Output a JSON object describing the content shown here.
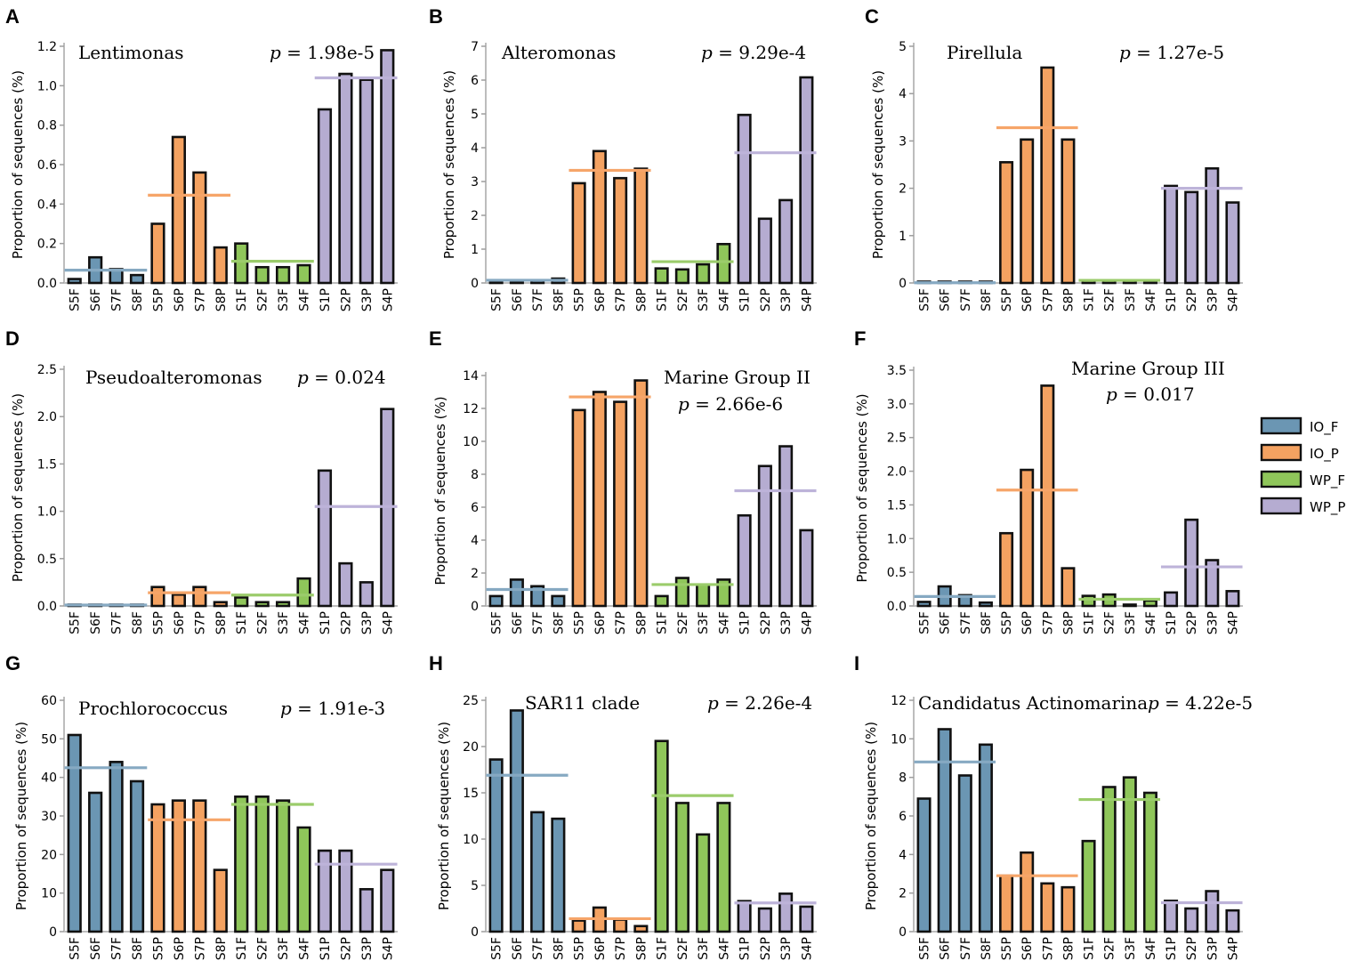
{
  "figure": {
    "colors": {
      "IO_F": "#6b96b3",
      "IO_P": "#f4a261",
      "WP_F": "#8fc65a",
      "WP_P": "#b5acd1"
    },
    "mean_line_colors": {
      "IO_F": "#86a9c2",
      "IO_P": "#f6a569",
      "WP_F": "#9bcc6b",
      "WP_P": "#bdb3d9"
    },
    "legend": [
      {
        "key": "IO_F",
        "label": "IO_F"
      },
      {
        "key": "IO_P",
        "label": "IO_P"
      },
      {
        "key": "WP_F",
        "label": "WP_F"
      },
      {
        "key": "WP_P",
        "label": "WP_P"
      }
    ],
    "ylabel": "Proportion of sequences (%)"
  },
  "chart_data": [
    {
      "panel": "A",
      "type": "bar",
      "title": "Lentimonas",
      "p_label": "p",
      "p_value": " = 1.98e-5",
      "ylabel": "Proportion of sequences (%)",
      "categories": [
        "S5F",
        "S6F",
        "S7F",
        "S8F",
        "S5P",
        "S6P",
        "S7P",
        "S8P",
        "S1F",
        "S2F",
        "S3F",
        "S4F",
        "S1P",
        "S2P",
        "S3P",
        "S4P"
      ],
      "groups": [
        "IO_F",
        "IO_F",
        "IO_F",
        "IO_F",
        "IO_P",
        "IO_P",
        "IO_P",
        "IO_P",
        "WP_F",
        "WP_F",
        "WP_F",
        "WP_F",
        "WP_P",
        "WP_P",
        "WP_P",
        "WP_P"
      ],
      "values": [
        0.02,
        0.13,
        0.07,
        0.04,
        0.3,
        0.74,
        0.56,
        0.18,
        0.2,
        0.08,
        0.08,
        0.09,
        0.88,
        1.06,
        1.03,
        1.18
      ],
      "means": {
        "IO_F": 0.065,
        "IO_P": 0.445,
        "WP_F": 0.11,
        "WP_P": 1.04
      },
      "ylim": [
        0,
        1.2
      ],
      "yticks": [
        "0.0",
        "0.2",
        "0.4",
        "0.6",
        "0.8",
        "1.0",
        "1.2"
      ],
      "ytick_values": [
        0,
        0.2,
        0.4,
        0.6,
        0.8,
        1.0,
        1.2
      ]
    },
    {
      "panel": "B",
      "type": "bar",
      "title": "Alteromonas",
      "p_label": "p",
      "p_value": " = 9.29e-4",
      "ylabel": "Proportion of sequences (%)",
      "categories": [
        "S5F",
        "S6F",
        "S7F",
        "S8F",
        "S5P",
        "S6P",
        "S7P",
        "S8P",
        "S1F",
        "S2F",
        "S3F",
        "S4F",
        "S1P",
        "S2P",
        "S3P",
        "S4P"
      ],
      "groups": [
        "IO_F",
        "IO_F",
        "IO_F",
        "IO_F",
        "IO_P",
        "IO_P",
        "IO_P",
        "IO_P",
        "WP_F",
        "WP_F",
        "WP_F",
        "WP_F",
        "WP_P",
        "WP_P",
        "WP_P",
        "WP_P"
      ],
      "values": [
        0.05,
        0.05,
        0.08,
        0.13,
        2.95,
        3.9,
        3.1,
        3.38,
        0.43,
        0.4,
        0.55,
        1.15,
        4.97,
        1.9,
        2.45,
        6.08
      ],
      "means": {
        "IO_F": 0.08,
        "IO_P": 3.33,
        "WP_F": 0.63,
        "WP_P": 3.85
      },
      "ylim": [
        0,
        7
      ],
      "yticks": [
        "0",
        "1",
        "2",
        "3",
        "4",
        "5",
        "6",
        "7"
      ],
      "ytick_values": [
        0,
        1,
        2,
        3,
        4,
        5,
        6,
        7
      ]
    },
    {
      "panel": "C",
      "type": "bar",
      "title": "Pirellula",
      "p_label": "p",
      "p_value": " = 1.27e-5",
      "ylabel": "Proportion of sequences (%)",
      "categories": [
        "S5F",
        "S6F",
        "S7F",
        "S8F",
        "S5P",
        "S6P",
        "S7P",
        "S8P",
        "S1F",
        "S2F",
        "S3F",
        "S4F",
        "S1P",
        "S2P",
        "S3P",
        "S4P"
      ],
      "groups": [
        "IO_F",
        "IO_F",
        "IO_F",
        "IO_F",
        "IO_P",
        "IO_P",
        "IO_P",
        "IO_P",
        "WP_F",
        "WP_F",
        "WP_F",
        "WP_F",
        "WP_P",
        "WP_P",
        "WP_P",
        "WP_P"
      ],
      "values": [
        0.005,
        0.005,
        0.005,
        0.005,
        2.55,
        3.03,
        4.55,
        3.03,
        0.06,
        0.06,
        0.06,
        0.04,
        2.05,
        1.92,
        2.42,
        1.7
      ],
      "means": {
        "IO_F": 0.005,
        "IO_P": 3.28,
        "WP_F": 0.055,
        "WP_P": 2.0
      },
      "ylim": [
        0,
        5
      ],
      "yticks": [
        "0",
        "1",
        "2",
        "3",
        "4",
        "5"
      ],
      "ytick_values": [
        0,
        1,
        2,
        3,
        4,
        5
      ]
    },
    {
      "panel": "D",
      "type": "bar",
      "title": "Pseudoalteromonas",
      "p_label": "p",
      "p_value": " = 0.024",
      "ylabel": "Proportion of sequences (%)",
      "categories": [
        "S5F",
        "S6F",
        "S7F",
        "S8F",
        "S5P",
        "S6P",
        "S7P",
        "S8P",
        "S1F",
        "S2F",
        "S3F",
        "S4F",
        "S1P",
        "S2P",
        "S3P",
        "S4P"
      ],
      "groups": [
        "IO_F",
        "IO_F",
        "IO_F",
        "IO_F",
        "IO_P",
        "IO_P",
        "IO_P",
        "IO_P",
        "WP_F",
        "WP_F",
        "WP_F",
        "WP_F",
        "WP_P",
        "WP_P",
        "WP_P",
        "WP_P"
      ],
      "values": [
        0.01,
        0.01,
        0.01,
        0.005,
        0.2,
        0.12,
        0.2,
        0.04,
        0.09,
        0.04,
        0.04,
        0.29,
        1.43,
        0.45,
        0.25,
        2.08
      ],
      "means": {
        "IO_F": 0.01,
        "IO_P": 0.14,
        "WP_F": 0.115,
        "WP_P": 1.05
      },
      "ylim": [
        0,
        2.5
      ],
      "yticks": [
        "0.0",
        "0.5",
        "1.0",
        "1.5",
        "2.0",
        "2.5"
      ],
      "ytick_values": [
        0,
        0.5,
        1.0,
        1.5,
        2.0,
        2.5
      ]
    },
    {
      "panel": "E",
      "type": "bar",
      "title": "Marine Group II",
      "p_label": "p",
      "p_value": " = 2.66e-6",
      "ylabel": "Proportion of sequences (%)",
      "categories": [
        "S5F",
        "S6F",
        "S7F",
        "S8F",
        "S5P",
        "S6P",
        "S7P",
        "S8P",
        "S1F",
        "S2F",
        "S3F",
        "S4F",
        "S1P",
        "S2P",
        "S3P",
        "S4P"
      ],
      "groups": [
        "IO_F",
        "IO_F",
        "IO_F",
        "IO_F",
        "IO_P",
        "IO_P",
        "IO_P",
        "IO_P",
        "WP_F",
        "WP_F",
        "WP_F",
        "WP_F",
        "WP_P",
        "WP_P",
        "WP_P",
        "WP_P"
      ],
      "values": [
        0.6,
        1.6,
        1.2,
        0.6,
        11.9,
        13.0,
        12.4,
        13.7,
        0.6,
        1.7,
        1.3,
        1.6,
        5.5,
        8.5,
        9.7,
        4.6
      ],
      "means": {
        "IO_F": 1.0,
        "IO_P": 12.7,
        "WP_F": 1.3,
        "WP_P": 7.0
      },
      "ylim": [
        0,
        14
      ],
      "yticks": [
        "0",
        "2",
        "4",
        "6",
        "8",
        "10",
        "12",
        "14"
      ],
      "ytick_values": [
        0,
        2,
        4,
        6,
        8,
        10,
        12,
        14
      ]
    },
    {
      "panel": "F",
      "type": "bar",
      "title": "Marine Group III",
      "p_label": "p",
      "p_value": " = 0.017",
      "ylabel": "Proportion of sequences (%)",
      "categories": [
        "S5F",
        "S6F",
        "S7F",
        "S8F",
        "S5P",
        "S6P",
        "S7P",
        "S8P",
        "S1F",
        "S2F",
        "S3F",
        "S4F",
        "S1P",
        "S2P",
        "S3P",
        "S4P"
      ],
      "groups": [
        "IO_F",
        "IO_F",
        "IO_F",
        "IO_F",
        "IO_P",
        "IO_P",
        "IO_P",
        "IO_P",
        "WP_F",
        "WP_F",
        "WP_F",
        "WP_F",
        "WP_P",
        "WP_P",
        "WP_P",
        "WP_P"
      ],
      "values": [
        0.06,
        0.29,
        0.16,
        0.05,
        1.08,
        2.02,
        3.27,
        0.56,
        0.15,
        0.17,
        0.02,
        0.08,
        0.2,
        1.28,
        0.68,
        0.22
      ],
      "means": {
        "IO_F": 0.14,
        "IO_P": 1.72,
        "WP_F": 0.1,
        "WP_P": 0.58
      },
      "ylim": [
        0,
        3.5
      ],
      "yticks": [
        "0.0",
        "0.5",
        "1.0",
        "1.5",
        "2.0",
        "2.5",
        "3.0",
        "3.5"
      ],
      "ytick_values": [
        0,
        0.5,
        1.0,
        1.5,
        2.0,
        2.5,
        3.0,
        3.5
      ]
    },
    {
      "panel": "G",
      "type": "bar",
      "title": "Prochlorococcus",
      "p_label": "p",
      "p_value": " = 1.91e-3",
      "ylabel": "Proportion of sequences (%)",
      "categories": [
        "S5F",
        "S6F",
        "S7F",
        "S8F",
        "S5P",
        "S6P",
        "S7P",
        "S8P",
        "S1F",
        "S2F",
        "S3F",
        "S4F",
        "S1P",
        "S2P",
        "S3P",
        "S4P"
      ],
      "groups": [
        "IO_F",
        "IO_F",
        "IO_F",
        "IO_F",
        "IO_P",
        "IO_P",
        "IO_P",
        "IO_P",
        "WP_F",
        "WP_F",
        "WP_F",
        "WP_F",
        "WP_P",
        "WP_P",
        "WP_P",
        "WP_P"
      ],
      "values": [
        51,
        36,
        44,
        39,
        33,
        34,
        34,
        16,
        35,
        35,
        34,
        27,
        21,
        21,
        11,
        16
      ],
      "means": {
        "IO_F": 42.5,
        "IO_P": 29,
        "WP_F": 33,
        "WP_P": 17.5
      },
      "ylim": [
        0,
        60
      ],
      "yticks": [
        "0",
        "10",
        "20",
        "30",
        "40",
        "50",
        "60"
      ],
      "ytick_values": [
        0,
        10,
        20,
        30,
        40,
        50,
        60
      ]
    },
    {
      "panel": "H",
      "type": "bar",
      "title": "SAR11 clade",
      "p_label": "p",
      "p_value": " = 2.26e-4",
      "ylabel": "Proportion of sequences (%)",
      "categories": [
        "S5F",
        "S6F",
        "S7F",
        "S8F",
        "S5P",
        "S6P",
        "S7P",
        "S8P",
        "S1F",
        "S2F",
        "S3F",
        "S4F",
        "S1P",
        "S2P",
        "S3P",
        "S4P"
      ],
      "groups": [
        "IO_F",
        "IO_F",
        "IO_F",
        "IO_F",
        "IO_P",
        "IO_P",
        "IO_P",
        "IO_P",
        "WP_F",
        "WP_F",
        "WP_F",
        "WP_F",
        "WP_P",
        "WP_P",
        "WP_P",
        "WP_P"
      ],
      "values": [
        18.6,
        23.9,
        12.9,
        12.2,
        1.2,
        2.6,
        1.3,
        0.6,
        20.6,
        13.9,
        10.5,
        13.9,
        3.3,
        2.5,
        4.1,
        2.7
      ],
      "means": {
        "IO_F": 16.9,
        "IO_P": 1.4,
        "WP_F": 14.7,
        "WP_P": 3.1
      },
      "ylim": [
        0,
        25
      ],
      "yticks": [
        "0",
        "5",
        "10",
        "15",
        "20",
        "25"
      ],
      "ytick_values": [
        0,
        5,
        10,
        15,
        20,
        25
      ]
    },
    {
      "panel": "I",
      "type": "bar",
      "title": "Candidatus Actinomarina",
      "p_label": "p",
      "p_value": " = 4.22e-5",
      "ylabel": "Proportion of sequences (%)",
      "categories": [
        "S5F",
        "S6F",
        "S7F",
        "S8F",
        "S5P",
        "S6P",
        "S7P",
        "S8P",
        "S1F",
        "S2F",
        "S3F",
        "S4F",
        "S1P",
        "S2P",
        "S3P",
        "S4P"
      ],
      "groups": [
        "IO_F",
        "IO_F",
        "IO_F",
        "IO_F",
        "IO_P",
        "IO_P",
        "IO_P",
        "IO_P",
        "WP_F",
        "WP_F",
        "WP_F",
        "WP_F",
        "WP_P",
        "WP_P",
        "WP_P",
        "WP_P"
      ],
      "values": [
        6.9,
        10.5,
        8.1,
        9.7,
        2.9,
        4.1,
        2.5,
        2.3,
        4.7,
        7.5,
        8.0,
        7.2,
        1.6,
        1.2,
        2.1,
        1.1
      ],
      "means": {
        "IO_F": 8.8,
        "IO_P": 2.9,
        "WP_F": 6.85,
        "WP_P": 1.5
      },
      "ylim": [
        0,
        12
      ],
      "yticks": [
        "0",
        "2",
        "4",
        "6",
        "8",
        "10",
        "12"
      ],
      "ytick_values": [
        0,
        2,
        4,
        6,
        8,
        10,
        12
      ]
    }
  ]
}
